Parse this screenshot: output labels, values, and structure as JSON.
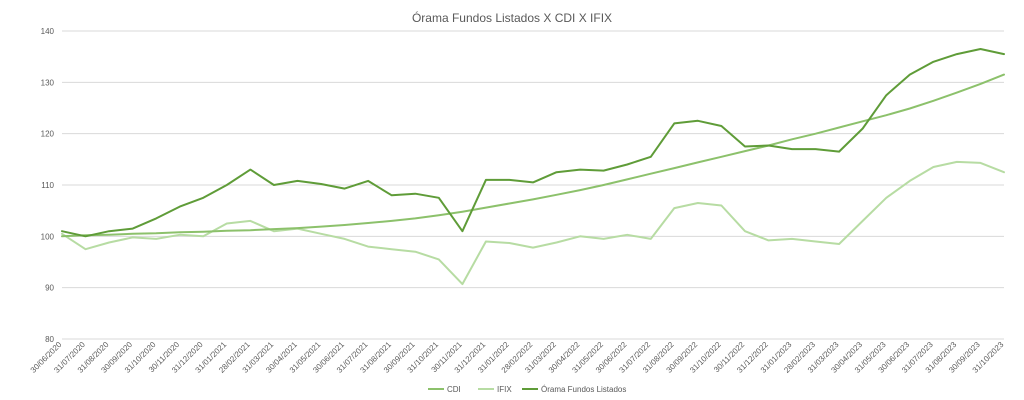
{
  "chart_data": {
    "type": "line",
    "title": "Órama Fundos Listados X CDI X IFIX",
    "xlabel": "",
    "ylabel": "",
    "ylim": [
      80,
      140
    ],
    "yticks": [
      80,
      90,
      100,
      110,
      120,
      130,
      140
    ],
    "grid": true,
    "legend_position": "bottom",
    "categories": [
      "30/06/2020",
      "31/07/2020",
      "31/08/2020",
      "30/09/2020",
      "31/10/2020",
      "30/11/2020",
      "31/12/2020",
      "31/01/2021",
      "28/02/2021",
      "31/03/2021",
      "30/04/2021",
      "31/05/2021",
      "30/06/2021",
      "31/07/2021",
      "31/08/2021",
      "30/09/2021",
      "31/10/2021",
      "30/11/2021",
      "31/12/2021",
      "31/01/2022",
      "28/02/2022",
      "31/03/2022",
      "30/04/2022",
      "31/05/2022",
      "30/06/2022",
      "31/07/2022",
      "31/08/2022",
      "30/09/2022",
      "31/10/2022",
      "30/11/2022",
      "31/12/2022",
      "31/01/2023",
      "28/02/2023",
      "31/03/2023",
      "30/04/2023",
      "31/05/2023",
      "30/06/2023",
      "31/07/2023",
      "31/08/2023",
      "30/09/2023",
      "31/10/2023"
    ],
    "series": [
      {
        "name": "CDI",
        "color": "#8cc16b",
        "values": [
          100.0,
          100.2,
          100.3,
          100.5,
          100.6,
          100.8,
          100.9,
          101.1,
          101.2,
          101.4,
          101.6,
          101.9,
          102.2,
          102.6,
          103.0,
          103.5,
          104.1,
          104.8,
          105.6,
          106.4,
          107.2,
          108.1,
          109.0,
          110.0,
          111.1,
          112.2,
          113.3,
          114.4,
          115.5,
          116.6,
          117.7,
          118.9,
          120.0,
          121.2,
          122.4,
          123.6,
          124.9,
          126.4,
          128.0,
          129.7,
          131.5
        ]
      },
      {
        "name": "IFIX",
        "color": "#b7dca3",
        "values": [
          100.5,
          97.5,
          98.8,
          99.8,
          99.5,
          100.3,
          100.0,
          102.5,
          103.0,
          101.0,
          101.5,
          100.5,
          99.5,
          98.0,
          97.5,
          97.0,
          95.5,
          90.7,
          99.0,
          98.7,
          97.8,
          98.8,
          100.0,
          99.5,
          100.3,
          99.5,
          105.5,
          106.5,
          106.0,
          101.0,
          99.2,
          99.5,
          99.0,
          98.5,
          103.0,
          107.5,
          110.8,
          113.5,
          114.5,
          114.3,
          112.5
        ]
      },
      {
        "name": "Órama Fundos Listados",
        "color": "#5f9c38",
        "values": [
          101.0,
          100.0,
          101.0,
          101.5,
          103.5,
          105.8,
          107.5,
          110.0,
          113.0,
          110.0,
          110.8,
          110.2,
          109.3,
          110.8,
          108.0,
          108.3,
          107.5,
          101.0,
          111.0,
          111.0,
          110.5,
          112.5,
          113.0,
          112.8,
          114.0,
          115.5,
          122.0,
          122.5,
          121.5,
          117.5,
          117.7,
          117.0,
          117.0,
          116.5,
          121.0,
          127.5,
          131.5,
          134.0,
          135.5,
          136.5,
          135.5
        ]
      }
    ]
  }
}
